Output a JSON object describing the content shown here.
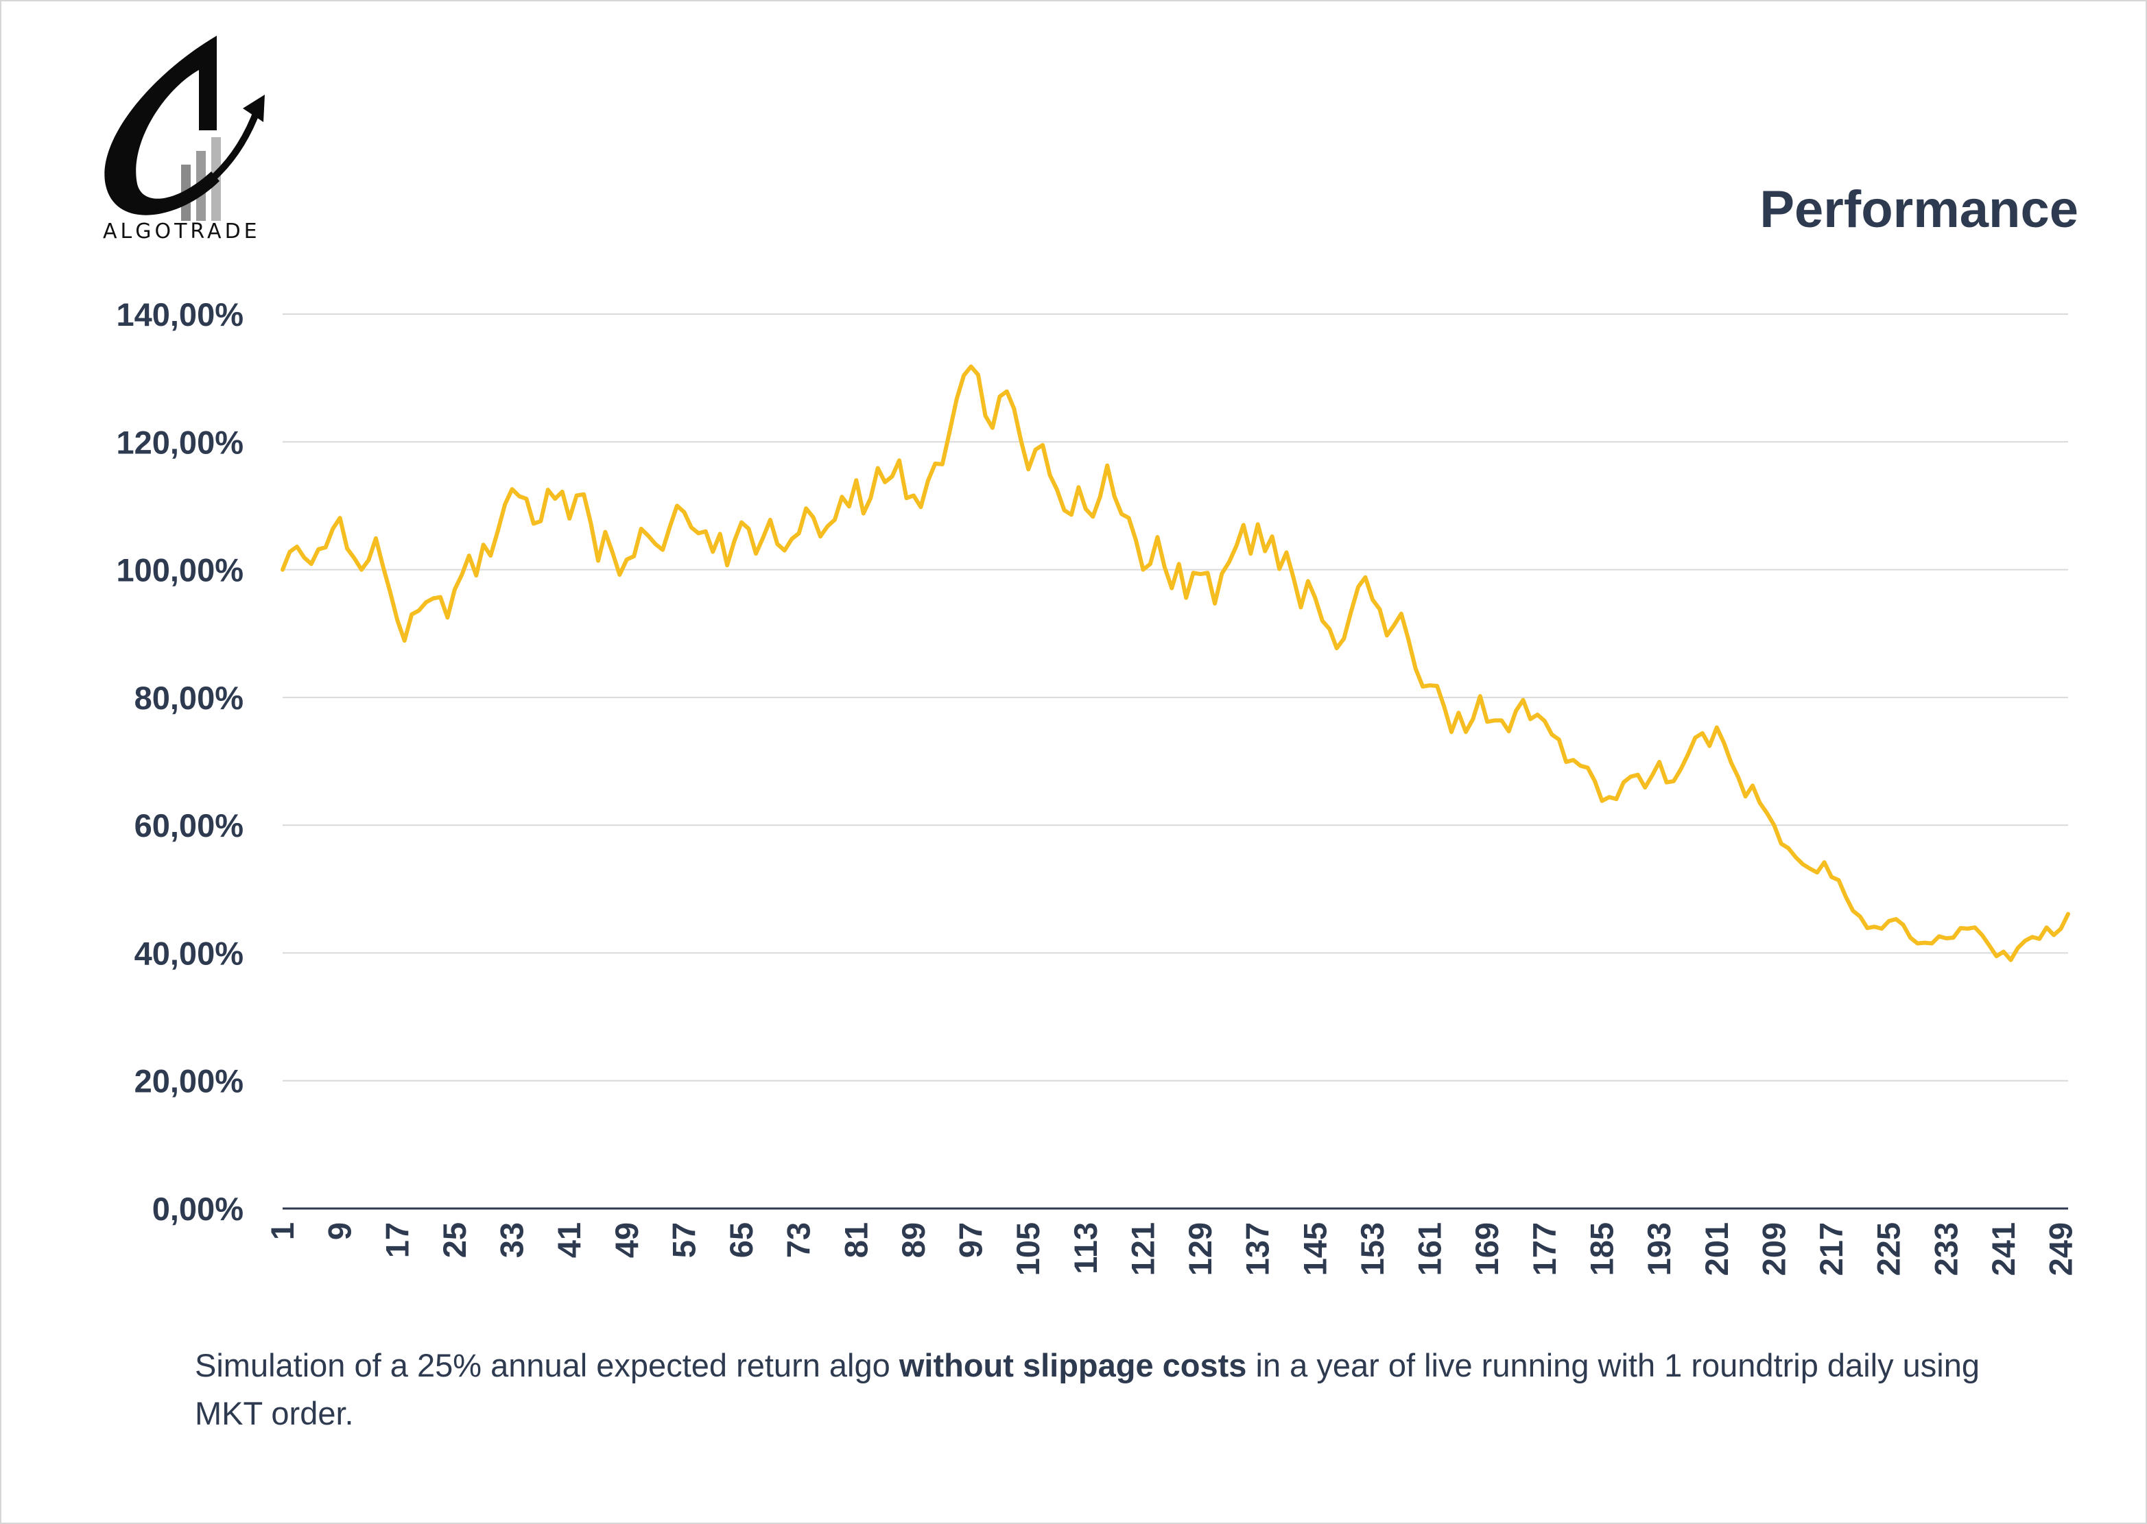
{
  "brand": {
    "logo_text": "ALGOTRADE"
  },
  "header": {
    "title": "Performance"
  },
  "caption": {
    "part1": "Simulation of a 25% annual expected return algo ",
    "bold": "without slippage costs",
    "part2": " in a year of live running with 1 roundtrip daily using MKT order."
  },
  "colors": {
    "line": "#f5bd1f",
    "text": "#2e3a4f",
    "grid": "#d9d9d9",
    "axis": "#2e3a4f"
  },
  "chart_data": {
    "type": "line",
    "title": "Performance",
    "xlabel": "",
    "ylabel": "",
    "ylim": [
      0,
      140
    ],
    "yticks": [
      0,
      20,
      40,
      60,
      80,
      100,
      120,
      140
    ],
    "ytick_labels": [
      "0,00%",
      "20,00%",
      "40,00%",
      "60,00%",
      "80,00%",
      "100,00%",
      "120,00%",
      "140,00%"
    ],
    "x_range": [
      1,
      250
    ],
    "xtick_values": [
      1,
      9,
      17,
      25,
      33,
      41,
      49,
      57,
      65,
      73,
      81,
      89,
      97,
      105,
      113,
      121,
      129,
      137,
      145,
      153,
      161,
      169,
      177,
      185,
      193,
      201,
      209,
      217,
      225,
      233,
      241,
      249
    ],
    "grid": true,
    "legend": "none",
    "series": [
      {
        "name": "Performance",
        "x": [
          1,
          2,
          3,
          4,
          5,
          6,
          7,
          8,
          9,
          10,
          11,
          12,
          13,
          14,
          15,
          16,
          17,
          18,
          19,
          20,
          21,
          22,
          23,
          24,
          25,
          26,
          27,
          28,
          29,
          30,
          31,
          32,
          33,
          34,
          35,
          36,
          37,
          38,
          39,
          40,
          41,
          42,
          43,
          44,
          45,
          46,
          47,
          48,
          49,
          50,
          51,
          52,
          53,
          54,
          55,
          56,
          57,
          58,
          59,
          60,
          61,
          62,
          63,
          64,
          65,
          66,
          67,
          68,
          69,
          70,
          71,
          72,
          73,
          74,
          75,
          76,
          77,
          78,
          79,
          80,
          81,
          82,
          83,
          84,
          85,
          86,
          87,
          88,
          89,
          90,
          91,
          92,
          93,
          94,
          95,
          96,
          97,
          98,
          99,
          100,
          101,
          102,
          103,
          104,
          105,
          106,
          107,
          108,
          109,
          110,
          111,
          112,
          113,
          114,
          115,
          116,
          117,
          118,
          119,
          120,
          121,
          122,
          123,
          124,
          125,
          126,
          127,
          128,
          129,
          130,
          131,
          132,
          133,
          134,
          135,
          136,
          137,
          138,
          139,
          140,
          141,
          142,
          143,
          144,
          145,
          146,
          147,
          148,
          149,
          150,
          151,
          152,
          153,
          154,
          155,
          156,
          157,
          158,
          159,
          160,
          161,
          162,
          163,
          164,
          165,
          166,
          167,
          168,
          169,
          170,
          171,
          172,
          173,
          174,
          175,
          176,
          177,
          178,
          179,
          180,
          181,
          182,
          183,
          184,
          185,
          186,
          187,
          188,
          189,
          190,
          191,
          192,
          193,
          194,
          195,
          196,
          197,
          198,
          199,
          200,
          201,
          202,
          203,
          204,
          205,
          206,
          207,
          208,
          209,
          210,
          211,
          212,
          213,
          214,
          215,
          216,
          217,
          218,
          219,
          220,
          221,
          222,
          223,
          224,
          225,
          226,
          227,
          228,
          229,
          230,
          231,
          232,
          233,
          234,
          235,
          236,
          237,
          238,
          239,
          240,
          241,
          242,
          243,
          244,
          245,
          246,
          247,
          248,
          249,
          250
        ],
        "values": [
          100,
          102.8,
          103.6,
          101.9,
          100.9,
          103.2,
          103.5,
          106.4,
          108.1,
          103.3,
          101.8,
          100,
          101.5,
          104.9,
          100.5,
          96.5,
          92.1,
          88.9,
          93,
          93.6,
          94.9,
          95.5,
          95.7,
          92.5,
          96.9,
          99.2,
          102.2,
          99.1,
          103.9,
          102.2,
          106,
          110.2,
          112.6,
          111.5,
          111.1,
          107.2,
          107.6,
          112.5,
          111.1,
          112.2,
          108,
          111.6,
          111.8,
          107.2,
          101.4,
          105.9,
          102.7,
          99.2,
          101.6,
          102.1,
          106.4,
          105.3,
          104,
          103.1,
          106.7,
          110,
          109,
          106.6,
          105.7,
          106,
          102.8,
          105.6,
          100.7,
          104.5,
          107.4,
          106.4,
          102.5,
          105,
          107.8,
          104,
          103,
          104.8,
          105.7,
          109.6,
          108.2,
          105.2,
          106.8,
          107.8,
          111.4,
          109.9,
          114,
          108.8,
          111.2,
          115.9,
          113.7,
          114.6,
          117.1,
          111.2,
          111.6,
          109.8,
          113.9,
          116.6,
          116.5,
          121.5,
          126.7,
          130.4,
          131.8,
          130.5,
          124.1,
          122.2,
          127.1,
          127.9,
          125.2,
          120.1,
          115.7,
          118.8,
          119.5,
          114.8,
          112.5,
          109.3,
          108.6,
          112.9,
          109.5,
          108.3,
          111.4,
          116.3,
          111.5,
          108.7,
          108.1,
          104.6,
          100,
          100.9,
          105.1,
          100.4,
          97.1,
          100.9,
          95.6,
          99.5,
          99.3,
          99.5,
          94.7,
          99.4,
          101.2,
          103.7,
          107,
          102.5,
          107.1,
          102.9,
          105.2,
          100.1,
          102.7,
          98.6,
          94.1,
          98.2,
          95.6,
          92,
          90.7,
          87.7,
          89.2,
          93.4,
          97.3,
          98.8,
          95.3,
          93.8,
          89.7,
          91.3,
          93.1,
          89.1,
          84.5,
          81.7,
          81.9,
          81.8,
          78.5,
          74.6,
          77.6,
          74.6,
          76.6,
          80.2,
          76.2,
          76.4,
          76.4,
          74.7,
          77.9,
          79.6,
          76.6,
          77.3,
          76.3,
          74.2,
          73.4,
          69.9,
          70.2,
          69.3,
          69,
          66.9,
          63.8,
          64.4,
          64.1,
          66.7,
          67.6,
          67.9,
          65.9,
          67.8,
          69.9,
          66.7,
          66.9,
          68.8,
          71.1,
          73.7,
          74.4,
          72.4,
          75.3,
          72.9,
          69.8,
          67.5,
          64.5,
          66.2,
          63.5,
          61.9,
          60,
          57.1,
          56.4,
          55,
          53.9,
          53.2,
          52.6,
          54.2,
          51.9,
          51.4,
          48.8,
          46.6,
          45.7,
          43.9,
          44.1,
          43.8,
          45,
          45.3,
          44.4,
          42.4,
          41.5,
          41.6,
          41.5,
          42.6,
          42.3,
          42.4,
          43.9,
          43.8,
          44,
          42.8,
          41.2,
          39.5,
          40.2,
          38.9,
          40.8,
          41.9,
          42.5,
          42.2,
          44,
          42.8,
          43.8,
          46.1
        ]
      }
    ]
  }
}
